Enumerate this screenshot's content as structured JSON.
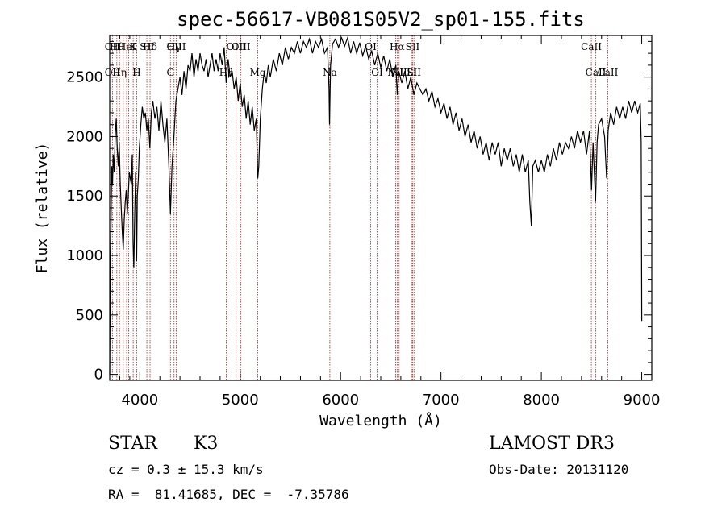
{
  "chart_data": {
    "type": "line",
    "title": "spec-56617-VB081S05V2_sp01-155.fits",
    "xlabel": "Wavelength (Å)",
    "ylabel": "Flux (relative)",
    "xlim": [
      3700,
      9100
    ],
    "ylim": [
      -50,
      2850
    ],
    "xticks": [
      4000,
      5000,
      6000,
      7000,
      8000,
      9000
    ],
    "yticks": [
      0,
      500,
      1000,
      1500,
      2000,
      2500
    ],
    "grid": false,
    "series": [
      {
        "points": [
          [
            3700,
            0
          ],
          [
            3705,
            750
          ],
          [
            3712,
            1200
          ],
          [
            3720,
            1750
          ],
          [
            3728,
            1600
          ],
          [
            3735,
            1850
          ],
          [
            3745,
            1700
          ],
          [
            3755,
            2000
          ],
          [
            3765,
            2150
          ],
          [
            3775,
            1900
          ],
          [
            3785,
            1750
          ],
          [
            3795,
            1950
          ],
          [
            3805,
            1600
          ],
          [
            3815,
            1400
          ],
          [
            3825,
            1200
          ],
          [
            3835,
            1050
          ],
          [
            3845,
            1300
          ],
          [
            3855,
            1450
          ],
          [
            3865,
            1550
          ],
          [
            3875,
            1350
          ],
          [
            3885,
            1500
          ],
          [
            3895,
            1700
          ],
          [
            3905,
            1650
          ],
          [
            3915,
            1600
          ],
          [
            3925,
            1850
          ],
          [
            3933,
            1100
          ],
          [
            3940,
            900
          ],
          [
            3948,
            1300
          ],
          [
            3958,
            1700
          ],
          [
            3968,
            950
          ],
          [
            3975,
            1500
          ],
          [
            3985,
            1650
          ],
          [
            3995,
            1900
          ],
          [
            4010,
            2100
          ],
          [
            4025,
            2250
          ],
          [
            4040,
            2150
          ],
          [
            4055,
            2200
          ],
          [
            4070,
            2050
          ],
          [
            4085,
            2150
          ],
          [
            4100,
            1900
          ],
          [
            4115,
            2200
          ],
          [
            4130,
            2300
          ],
          [
            4150,
            2150
          ],
          [
            4170,
            2250
          ],
          [
            4190,
            2050
          ],
          [
            4210,
            2300
          ],
          [
            4230,
            2100
          ],
          [
            4250,
            1950
          ],
          [
            4270,
            2150
          ],
          [
            4290,
            1750
          ],
          [
            4305,
            1350
          ],
          [
            4320,
            1750
          ],
          [
            4340,
            2000
          ],
          [
            4360,
            2300
          ],
          [
            4380,
            2400
          ],
          [
            4400,
            2500
          ],
          [
            4420,
            2350
          ],
          [
            4440,
            2550
          ],
          [
            4460,
            2400
          ],
          [
            4480,
            2600
          ],
          [
            4500,
            2550
          ],
          [
            4520,
            2700
          ],
          [
            4540,
            2500
          ],
          [
            4560,
            2650
          ],
          [
            4580,
            2550
          ],
          [
            4600,
            2700
          ],
          [
            4620,
            2600
          ],
          [
            4640,
            2550
          ],
          [
            4660,
            2650
          ],
          [
            4680,
            2500
          ],
          [
            4700,
            2600
          ],
          [
            4720,
            2700
          ],
          [
            4740,
            2550
          ],
          [
            4760,
            2650
          ],
          [
            4780,
            2550
          ],
          [
            4800,
            2700
          ],
          [
            4820,
            2600
          ],
          [
            4840,
            2750
          ],
          [
            4860,
            2450
          ],
          [
            4880,
            2650
          ],
          [
            4900,
            2500
          ],
          [
            4920,
            2550
          ],
          [
            4940,
            2400
          ],
          [
            4960,
            2500
          ],
          [
            4980,
            2300
          ],
          [
            5000,
            2450
          ],
          [
            5020,
            2250
          ],
          [
            5040,
            2350
          ],
          [
            5060,
            2150
          ],
          [
            5080,
            2300
          ],
          [
            5100,
            2100
          ],
          [
            5120,
            2250
          ],
          [
            5140,
            2050
          ],
          [
            5160,
            2150
          ],
          [
            5175,
            1650
          ],
          [
            5185,
            1750
          ],
          [
            5200,
            2150
          ],
          [
            5220,
            2400
          ],
          [
            5240,
            2550
          ],
          [
            5260,
            2450
          ],
          [
            5280,
            2600
          ],
          [
            5300,
            2500
          ],
          [
            5330,
            2650
          ],
          [
            5360,
            2550
          ],
          [
            5390,
            2700
          ],
          [
            5420,
            2600
          ],
          [
            5450,
            2750
          ],
          [
            5480,
            2650
          ],
          [
            5510,
            2750
          ],
          [
            5540,
            2700
          ],
          [
            5570,
            2800
          ],
          [
            5600,
            2700
          ],
          [
            5630,
            2800
          ],
          [
            5660,
            2750
          ],
          [
            5690,
            2820
          ],
          [
            5720,
            2700
          ],
          [
            5750,
            2800
          ],
          [
            5780,
            2750
          ],
          [
            5810,
            2820
          ],
          [
            5840,
            2700
          ],
          [
            5870,
            2750
          ],
          [
            5885,
            2400
          ],
          [
            5890,
            2100
          ],
          [
            5900,
            2600
          ],
          [
            5920,
            2780
          ],
          [
            5950,
            2820
          ],
          [
            5980,
            2750
          ],
          [
            6010,
            2830
          ],
          [
            6040,
            2760
          ],
          [
            6070,
            2830
          ],
          [
            6100,
            2700
          ],
          [
            6130,
            2800
          ],
          [
            6160,
            2700
          ],
          [
            6190,
            2790
          ],
          [
            6220,
            2680
          ],
          [
            6250,
            2760
          ],
          [
            6280,
            2650
          ],
          [
            6310,
            2720
          ],
          [
            6340,
            2600
          ],
          [
            6370,
            2700
          ],
          [
            6400,
            2580
          ],
          [
            6430,
            2680
          ],
          [
            6460,
            2550
          ],
          [
            6490,
            2650
          ],
          [
            6520,
            2500
          ],
          [
            6550,
            2600
          ],
          [
            6565,
            2350
          ],
          [
            6580,
            2550
          ],
          [
            6610,
            2450
          ],
          [
            6640,
            2550
          ],
          [
            6670,
            2400
          ],
          [
            6700,
            2500
          ],
          [
            6730,
            2350
          ],
          [
            6760,
            2450
          ],
          [
            6790,
            2400
          ],
          [
            6820,
            2350
          ],
          [
            6850,
            2400
          ],
          [
            6880,
            2300
          ],
          [
            6910,
            2380
          ],
          [
            6940,
            2250
          ],
          [
            6970,
            2320
          ],
          [
            7000,
            2200
          ],
          [
            7030,
            2280
          ],
          [
            7060,
            2150
          ],
          [
            7090,
            2250
          ],
          [
            7120,
            2100
          ],
          [
            7150,
            2200
          ],
          [
            7180,
            2050
          ],
          [
            7210,
            2150
          ],
          [
            7240,
            2000
          ],
          [
            7270,
            2100
          ],
          [
            7300,
            1950
          ],
          [
            7330,
            2050
          ],
          [
            7360,
            1900
          ],
          [
            7390,
            2000
          ],
          [
            7420,
            1850
          ],
          [
            7450,
            1950
          ],
          [
            7480,
            1800
          ],
          [
            7510,
            1950
          ],
          [
            7540,
            1850
          ],
          [
            7570,
            1950
          ],
          [
            7600,
            1750
          ],
          [
            7630,
            1900
          ],
          [
            7660,
            1800
          ],
          [
            7690,
            1900
          ],
          [
            7720,
            1750
          ],
          [
            7750,
            1850
          ],
          [
            7780,
            1700
          ],
          [
            7810,
            1850
          ],
          [
            7840,
            1700
          ],
          [
            7870,
            1800
          ],
          [
            7885,
            1450
          ],
          [
            7900,
            1250
          ],
          [
            7915,
            1750
          ],
          [
            7940,
            1800
          ],
          [
            7970,
            1700
          ],
          [
            8000,
            1800
          ],
          [
            8030,
            1700
          ],
          [
            8060,
            1850
          ],
          [
            8090,
            1750
          ],
          [
            8120,
            1900
          ],
          [
            8150,
            1800
          ],
          [
            8180,
            1950
          ],
          [
            8210,
            1850
          ],
          [
            8240,
            1950
          ],
          [
            8270,
            1900
          ],
          [
            8300,
            2000
          ],
          [
            8330,
            1900
          ],
          [
            8360,
            2050
          ],
          [
            8390,
            1950
          ],
          [
            8420,
            2050
          ],
          [
            8450,
            1850
          ],
          [
            8480,
            2050
          ],
          [
            8500,
            1550
          ],
          [
            8515,
            1950
          ],
          [
            8540,
            1450
          ],
          [
            8555,
            1950
          ],
          [
            8570,
            2100
          ],
          [
            8600,
            2150
          ],
          [
            8630,
            2000
          ],
          [
            8650,
            1650
          ],
          [
            8665,
            2050
          ],
          [
            8690,
            2200
          ],
          [
            8720,
            2100
          ],
          [
            8750,
            2250
          ],
          [
            8780,
            2150
          ],
          [
            8810,
            2250
          ],
          [
            8840,
            2150
          ],
          [
            8870,
            2300
          ],
          [
            8900,
            2200
          ],
          [
            8930,
            2300
          ],
          [
            8960,
            2200
          ],
          [
            8985,
            2280
          ],
          [
            8995,
            1950
          ],
          [
            9000,
            450
          ]
        ]
      }
    ],
    "lines": [
      {
        "w": 3727,
        "l1": "OII",
        "l2": "OII"
      },
      {
        "w": 3771,
        "l1": "Hθ",
        "l2": ""
      },
      {
        "w": 3798,
        "l1": "",
        "l2": "Hη"
      },
      {
        "w": 3835,
        "l1": "",
        "l2": ""
      },
      {
        "w": 3869,
        "l1": "HeI",
        "l2": ""
      },
      {
        "w": 3889,
        "l1": "",
        "l2": ""
      },
      {
        "w": 3934,
        "l1": "K",
        "l2": ""
      },
      {
        "w": 3969,
        "l1": "",
        "l2": "H"
      },
      {
        "w": 4070,
        "l1": "SII",
        "l2": ""
      },
      {
        "w": 4102,
        "l1": "Hδ",
        "l2": ""
      },
      {
        "w": 4305,
        "l1": "",
        "l2": "G"
      },
      {
        "w": 4341,
        "l1": "Hγ",
        "l2": ""
      },
      {
        "w": 4363,
        "l1": "OIII",
        "l2": ""
      },
      {
        "w": 4861,
        "l1": "",
        "l2": "Hβ"
      },
      {
        "w": 4959,
        "l1": "OIII",
        "l2": ""
      },
      {
        "w": 5007,
        "l1": "OIII",
        "l2": ""
      },
      {
        "w": 5175,
        "l1": "",
        "l2": "Mg"
      },
      {
        "w": 5893,
        "l1": "",
        "l2": "Na"
      },
      {
        "w": 6300,
        "l1": "OI",
        "l2": ""
      },
      {
        "w": 6364,
        "l1": "",
        "l2": "OI"
      },
      {
        "w": 6548,
        "l1": "",
        "l2": "NII"
      },
      {
        "w": 6563,
        "l1": "Hα",
        "l2": ""
      },
      {
        "w": 6583,
        "l1": "",
        "l2": "NII"
      },
      {
        "w": 6707,
        "l1": "",
        "l2": "Li"
      },
      {
        "w": 6717,
        "l1": "SII",
        "l2": ""
      },
      {
        "w": 6731,
        "l1": "",
        "l2": "SII"
      },
      {
        "w": 8498,
        "l1": "CaII",
        "l2": ""
      },
      {
        "w": 8542,
        "l1": "",
        "l2": "CaII"
      },
      {
        "w": 8662,
        "l1": "",
        "l2": "CaII"
      }
    ],
    "colors": {
      "spectrum": "#000000",
      "lines": "#b22222",
      "axes": "#000000"
    }
  },
  "info": {
    "class": "STAR",
    "subclass": "K3",
    "cz": "cz = 0.3 ± 15.3 km/s",
    "coords": "RA =  81.41685, DEC =  -7.35786",
    "survey": "LAMOST DR3",
    "obsdate": "Obs-Date: 20131120"
  }
}
